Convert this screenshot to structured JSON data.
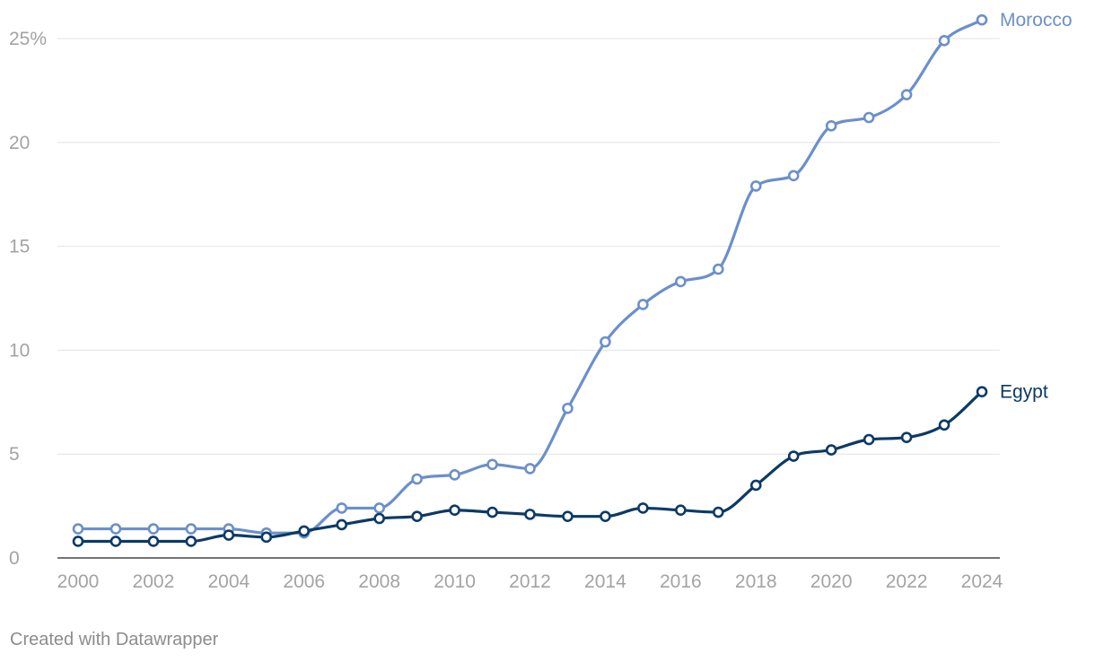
{
  "chart_data": {
    "type": "line",
    "title": "",
    "xlabel": "",
    "ylabel": "",
    "x": [
      2000,
      2001,
      2002,
      2003,
      2004,
      2005,
      2006,
      2007,
      2008,
      2009,
      2010,
      2011,
      2012,
      2013,
      2014,
      2015,
      2016,
      2017,
      2018,
      2019,
      2020,
      2021,
      2022,
      2023,
      2024
    ],
    "x_ticks": [
      "2000",
      "2002",
      "2004",
      "2006",
      "2008",
      "2010",
      "2012",
      "2014",
      "2016",
      "2018",
      "2020",
      "2022",
      "2024"
    ],
    "y_ticks": [
      "0",
      "5",
      "10",
      "15",
      "20",
      "25%"
    ],
    "ylim": [
      0,
      25
    ],
    "xlim": [
      2000,
      2024
    ],
    "grid": "horizontal",
    "legend": "direct labels at line ends",
    "series": [
      {
        "name": "Morocco",
        "color": "#6b8fcb",
        "values": [
          1.4,
          1.4,
          1.4,
          1.4,
          1.4,
          1.2,
          1.2,
          2.4,
          2.4,
          3.8,
          4.0,
          4.5,
          4.3,
          7.2,
          10.4,
          12.2,
          13.3,
          13.9,
          17.9,
          18.4,
          20.8,
          21.2,
          22.3,
          24.9,
          25.9
        ]
      },
      {
        "name": "Egypt",
        "color": "#0c3a66",
        "values": [
          0.8,
          0.8,
          0.8,
          0.8,
          1.1,
          1.0,
          1.3,
          1.6,
          1.9,
          2.0,
          2.3,
          2.2,
          2.1,
          2.0,
          2.0,
          2.4,
          2.3,
          2.2,
          3.5,
          4.9,
          5.2,
          5.7,
          5.8,
          6.4,
          8.0
        ]
      }
    ]
  },
  "footer": {
    "credit": "Created with Datawrapper"
  },
  "colors": {
    "grid": "#e3e3e3",
    "axis": "#222222",
    "tick_text": "#a3a3a3"
  }
}
